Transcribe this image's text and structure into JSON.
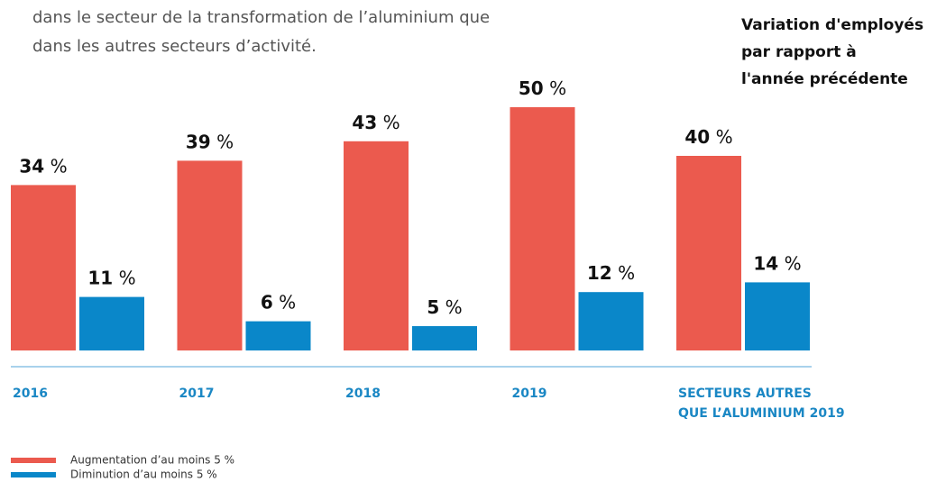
{
  "intro": [
    "dans le secteur de la transformation de l’aluminium que",
    "dans les autres secteurs d’activité."
  ],
  "chart_data": {
    "type": "bar",
    "title": [
      "Variation d'employés",
      "par rapport à",
      "l'année précédente"
    ],
    "categories": [
      "2016",
      "2017",
      "2018",
      "2019",
      "SECTEURS AUTRES\nQUE L’ALUMINIUM 2019"
    ],
    "ylim": [
      0,
      50
    ],
    "series": [
      {
        "name": "Augmentation d’au moins 5 %",
        "color": "#eb5a4e",
        "values": [
          34,
          39,
          43,
          50,
          40
        ],
        "value_labels": [
          "34 %",
          "39 %",
          "43 %",
          "50 %",
          "40 %"
        ]
      },
      {
        "name": "Diminution d’au moins 5 %",
        "color": "#0a87c9",
        "values": [
          11,
          6,
          5,
          12,
          14
        ],
        "value_labels": [
          "11 %",
          "6 %",
          "5 %",
          "12 %",
          "14 %"
        ]
      }
    ]
  }
}
